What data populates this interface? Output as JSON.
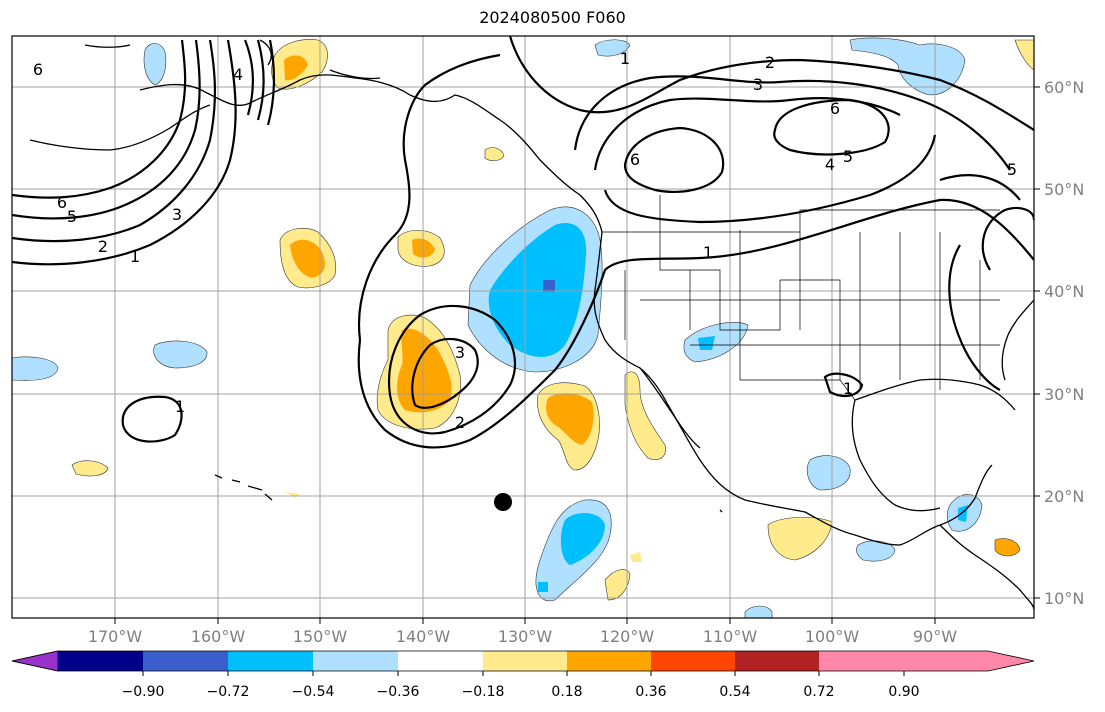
{
  "title": "2024080500 F060",
  "lat_ticks": [
    {
      "label": "60°N",
      "lat": 60
    },
    {
      "label": "50°N",
      "lat": 50
    },
    {
      "label": "40°N",
      "lat": 40
    },
    {
      "label": "30°N",
      "lat": 30
    },
    {
      "label": "20°N",
      "lat": 20
    },
    {
      "label": "10°N",
      "lat": 10
    }
  ],
  "lon_ticks": [
    {
      "label": "170°W",
      "lon": -170
    },
    {
      "label": "160°W",
      "lon": -160
    },
    {
      "label": "150°W",
      "lon": -150
    },
    {
      "label": "140°W",
      "lon": -140
    },
    {
      "label": "130°W",
      "lon": -130
    },
    {
      "label": "120°W",
      "lon": -120
    },
    {
      "label": "110°W",
      "lon": -110
    },
    {
      "label": "100°W",
      "lon": -100
    },
    {
      "label": "90°W",
      "lon": -90
    }
  ],
  "colorbar": {
    "levels": [
      "−0.90",
      "−0.72",
      "−0.54",
      "−0.36",
      "−0.18",
      "0.18",
      "0.36",
      "0.54",
      "0.72",
      "0.90"
    ],
    "colors": [
      "#9932cc",
      "#00008b",
      "#3a5fcd",
      "#00bfff",
      "#b0e0ff",
      "#ffffff",
      "#ffeb8c",
      "#ffa500",
      "#ff4500",
      "#b22222",
      "#ff88aa"
    ]
  },
  "contour_labels": [
    "1",
    "2",
    "3",
    "4",
    "5",
    "6"
  ],
  "storm_marker": {
    "lat": 19.2,
    "lon": -132.5,
    "symbol": "black-dot"
  }
}
